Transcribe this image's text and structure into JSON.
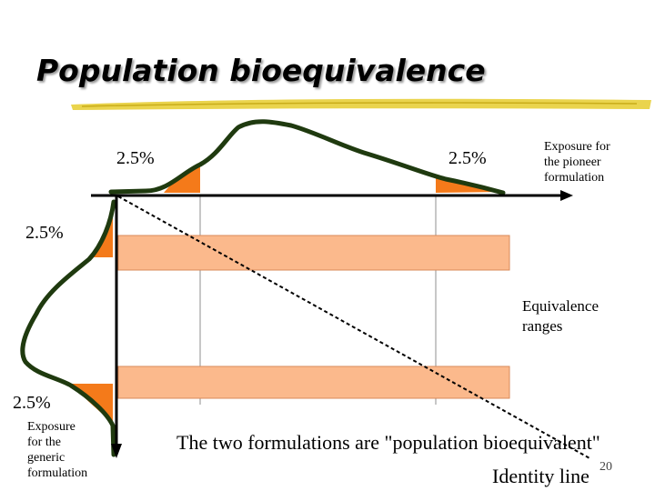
{
  "title": "Population bioequivalence",
  "labels": {
    "pct_top_left": "2.5%",
    "pct_top_right": "2.5%",
    "pct_left_top": "2.5%",
    "pct_left_bottom": "2.5%",
    "pioneer_exposure": [
      "Exposure for",
      "the pioneer",
      "formulation"
    ],
    "generic_exposure": [
      "Exposure",
      "for the",
      "generic",
      "formulation"
    ],
    "equivalence_ranges": [
      "Equivalence",
      "ranges"
    ],
    "conclusion": "The two formulations are \"population bioequivalent\"",
    "identity_line": "Identity line",
    "page_number": "20"
  },
  "colors": {
    "curve": "#1f3a0f",
    "tail_fill": "#f47a1a",
    "band_fill": "#fbb98c",
    "band_stroke": "#d98a5a",
    "title_underline": "#e6cc2e"
  }
}
